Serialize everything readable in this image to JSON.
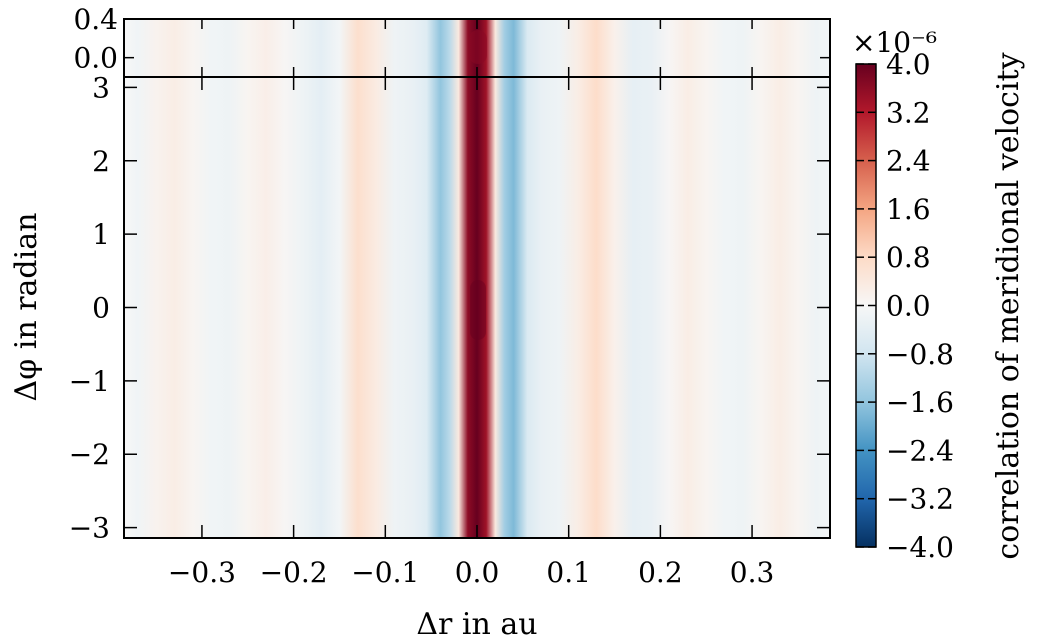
{
  "chart_data": {
    "type": "heatmap",
    "xlabel": "Δr in au",
    "ylabel": "Δφ in radian",
    "colorbar_label": "correlation of meridional velocity",
    "colorbar_multiplier": "×10⁻⁶",
    "colormap": "RdBu_r",
    "xlim": [
      -0.385,
      0.385
    ],
    "ylim_main": [
      -3.14159,
      3.14159
    ],
    "ylim_inset": [
      -0.2,
      0.4
    ],
    "clim": [
      -4e-06,
      4e-06
    ],
    "x_ticks": [
      "−0.3",
      "−0.2",
      "−0.1",
      "0.0",
      "0.1",
      "0.2",
      "0.3"
    ],
    "x_tick_values": [
      -0.3,
      -0.2,
      -0.1,
      0.0,
      0.1,
      0.2,
      0.3
    ],
    "y_ticks_main": [
      "3",
      "2",
      "1",
      "0",
      "−1",
      "−2",
      "−3"
    ],
    "y_tick_values_main": [
      3,
      2,
      1,
      0,
      -1,
      -2,
      -3
    ],
    "y_ticks_inset": [
      "0.4",
      "0.0"
    ],
    "y_tick_values_inset": [
      0.4,
      0.0
    ],
    "colorbar_ticks": [
      "4.0",
      "3.2",
      "2.4",
      "1.6",
      "0.8",
      "0.0",
      "−0.8",
      "−1.6",
      "−2.4",
      "−3.2",
      "−4.0"
    ],
    "colorbar_tick_values": [
      4.0,
      3.2,
      2.4,
      1.6,
      0.8,
      0.0,
      -0.8,
      -1.6,
      -2.4,
      -3.2,
      -4.0
    ],
    "radial_profile_1e6": [
      {
        "dr": -0.385,
        "v": 0.0
      },
      {
        "dr": -0.37,
        "v": -0.15
      },
      {
        "dr": -0.35,
        "v": 0.15
      },
      {
        "dr": -0.33,
        "v": 0.3
      },
      {
        "dr": -0.31,
        "v": 0.1
      },
      {
        "dr": -0.29,
        "v": -0.15
      },
      {
        "dr": -0.27,
        "v": -0.2
      },
      {
        "dr": -0.25,
        "v": 0.1
      },
      {
        "dr": -0.23,
        "v": 0.25
      },
      {
        "dr": -0.21,
        "v": 0.05
      },
      {
        "dr": -0.19,
        "v": -0.2
      },
      {
        "dr": -0.17,
        "v": -0.4
      },
      {
        "dr": -0.15,
        "v": -0.1
      },
      {
        "dr": -0.13,
        "v": 0.7
      },
      {
        "dr": -0.11,
        "v": 0.35
      },
      {
        "dr": -0.09,
        "v": -0.2
      },
      {
        "dr": -0.07,
        "v": -0.3
      },
      {
        "dr": -0.055,
        "v": -0.5
      },
      {
        "dr": -0.04,
        "v": -1.6
      },
      {
        "dr": -0.03,
        "v": -1.1
      },
      {
        "dr": -0.02,
        "v": 0.4
      },
      {
        "dr": -0.01,
        "v": 3.6
      },
      {
        "dr": 0.0,
        "v": 4.0
      },
      {
        "dr": 0.01,
        "v": 3.4
      },
      {
        "dr": 0.02,
        "v": 0.4
      },
      {
        "dr": 0.03,
        "v": -1.4
      },
      {
        "dr": 0.04,
        "v": -1.8
      },
      {
        "dr": 0.055,
        "v": -0.6
      },
      {
        "dr": 0.07,
        "v": -0.3
      },
      {
        "dr": 0.09,
        "v": -0.2
      },
      {
        "dr": 0.11,
        "v": 0.3
      },
      {
        "dr": 0.13,
        "v": 0.75
      },
      {
        "dr": 0.15,
        "v": 0.2
      },
      {
        "dr": 0.17,
        "v": -0.35
      },
      {
        "dr": 0.19,
        "v": -0.3
      },
      {
        "dr": 0.21,
        "v": 0.05
      },
      {
        "dr": 0.23,
        "v": 0.3
      },
      {
        "dr": 0.25,
        "v": 0.1
      },
      {
        "dr": 0.27,
        "v": -0.15
      },
      {
        "dr": 0.29,
        "v": -0.2
      },
      {
        "dr": 0.31,
        "v": 0.1
      },
      {
        "dr": 0.33,
        "v": 0.3
      },
      {
        "dr": 0.35,
        "v": 0.1
      },
      {
        "dr": 0.37,
        "v": -0.2
      },
      {
        "dr": 0.385,
        "v": -0.1
      }
    ]
  }
}
